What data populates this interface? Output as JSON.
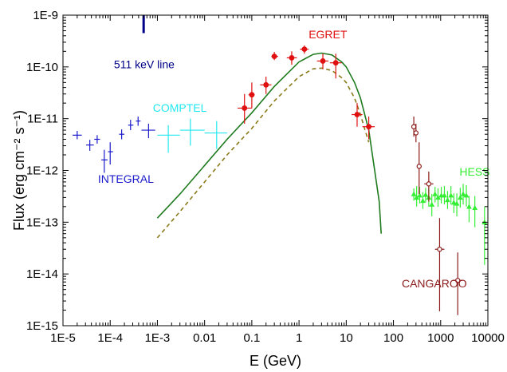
{
  "chart_data": {
    "type": "scatter",
    "xlabel": "E (GeV)",
    "ylabel": "Flux (erg cm⁻² s⁻¹)",
    "x_scale": "log",
    "y_scale": "log",
    "xlim": [
      1e-05,
      10000
    ],
    "ylim": [
      1e-15,
      1e-09
    ],
    "grid": false,
    "x_ticks": [
      {
        "value": 1e-05,
        "label": "1E-5"
      },
      {
        "value": 0.0001,
        "label": "1E-4"
      },
      {
        "value": 0.001,
        "label": "1E-3"
      },
      {
        "value": 0.01,
        "label": "0.01"
      },
      {
        "value": 0.1,
        "label": "0.1"
      },
      {
        "value": 1,
        "label": "1"
      },
      {
        "value": 10,
        "label": "10"
      },
      {
        "value": 100,
        "label": "100"
      },
      {
        "value": 1000,
        "label": "1000"
      },
      {
        "value": 10000,
        "label": "10000"
      }
    ],
    "y_ticks": [
      {
        "value": 1e-15,
        "label": "1E-15"
      },
      {
        "value": 1e-14,
        "label": "1E-14"
      },
      {
        "value": 1e-13,
        "label": "1E-13"
      },
      {
        "value": 1e-12,
        "label": "1E-12"
      },
      {
        "value": 1e-11,
        "label": "1E-11"
      },
      {
        "value": 1e-10,
        "label": "1E-10"
      },
      {
        "value": 1e-09,
        "label": "1E-9"
      }
    ],
    "series": [
      {
        "name": "INTEGRAL",
        "color": "#1a1acc",
        "marker": "cross",
        "points": [
          {
            "x": 2e-05,
            "y": 4.8e-12,
            "xlo": 1.6e-05,
            "xhi": 2.5e-05,
            "ylo": 4e-12,
            "yhi": 5.8e-12
          },
          {
            "x": 3.7e-05,
            "y": 3.1e-12,
            "xlo": 3.1e-05,
            "xhi": 4.5e-05,
            "ylo": 2.4e-12,
            "yhi": 3.9e-12
          },
          {
            "x": 5.3e-05,
            "y": 4e-12,
            "xlo": 4.6e-05,
            "xhi": 6.1e-05,
            "ylo": 3.3e-12,
            "yhi": 4.8e-12
          },
          {
            "x": 7.5e-05,
            "y": 1.6e-12,
            "xlo": 6.5e-05,
            "xhi": 8.8e-05,
            "ylo": 9e-13,
            "yhi": 2.5e-12
          },
          {
            "x": 0.0001,
            "y": 2.3e-12,
            "xlo": 9e-05,
            "xhi": 0.000115,
            "ylo": 1.3e-12,
            "yhi": 3.5e-12
          },
          {
            "x": 0.000175,
            "y": 5e-12,
            "xlo": 0.000155,
            "xhi": 0.0002,
            "ylo": 4e-12,
            "yhi": 6.2e-12
          },
          {
            "x": 0.00027,
            "y": 7.5e-12,
            "xlo": 0.00024,
            "xhi": 0.00031,
            "ylo": 6e-12,
            "yhi": 9.5e-12
          },
          {
            "x": 0.00039,
            "y": 9e-12,
            "xlo": 0.00035,
            "xhi": 0.00044,
            "ylo": 7.3e-12,
            "yhi": 1.1e-11
          },
          {
            "x": 0.00065,
            "y": 6e-12,
            "xlo": 0.00046,
            "xhi": 0.0009,
            "ylo": 4.2e-12,
            "yhi": 8e-12
          }
        ]
      },
      {
        "name": "COMPTEL",
        "color": "#22e8f0",
        "marker": "cross",
        "points": [
          {
            "x": 0.0017,
            "y": 4.8e-12,
            "xlo": 0.001,
            "xhi": 0.003,
            "ylo": 2.2e-12,
            "yhi": 7.5e-12
          },
          {
            "x": 0.005,
            "y": 6e-12,
            "xlo": 0.003,
            "xhi": 0.01,
            "ylo": 3e-12,
            "yhi": 1e-11
          },
          {
            "x": 0.018,
            "y": 5.3e-12,
            "xlo": 0.01,
            "xhi": 0.03,
            "ylo": 2.6e-12,
            "yhi": 9e-12
          }
        ]
      },
      {
        "name": "EGRET",
        "color": "#e01010",
        "marker": "filled-circle",
        "points": [
          {
            "x": 0.07,
            "y": 1.6e-11,
            "xlo": 0.05,
            "xhi": 0.1,
            "ylo": 8e-12,
            "yhi": 3e-11
          },
          {
            "x": 0.1,
            "y": 2.9e-11,
            "xlo": 0.085,
            "xhi": 0.115,
            "ylo": 1.6e-11,
            "yhi": 5e-11
          },
          {
            "x": 0.2,
            "y": 4.5e-11,
            "xlo": 0.15,
            "xhi": 0.26,
            "ylo": 3e-11,
            "yhi": 6.5e-11
          },
          {
            "x": 0.3,
            "y": 1.6e-10,
            "xlo": 0.26,
            "xhi": 0.36,
            "ylo": 1.35e-10,
            "yhi": 1.95e-10
          },
          {
            "x": 0.7,
            "y": 1.5e-10,
            "xlo": 0.55,
            "xhi": 0.9,
            "ylo": 1.1e-10,
            "yhi": 2e-10
          },
          {
            "x": 1.3,
            "y": 2.2e-10,
            "xlo": 1.05,
            "xhi": 1.6,
            "ylo": 1.8e-10,
            "yhi": 2.6e-10
          },
          {
            "x": 3.2,
            "y": 1.3e-10,
            "xlo": 2.4,
            "xhi": 4.2,
            "ylo": 9e-11,
            "yhi": 1.8e-10
          },
          {
            "x": 6.0,
            "y": 1.2e-10,
            "xlo": 4.5,
            "xhi": 8.0,
            "ylo": 6e-11,
            "yhi": 1.8e-10
          },
          {
            "x": 17,
            "y": 1.2e-11,
            "xlo": 13,
            "xhi": 22,
            "ylo": 7e-12,
            "yhi": 2e-11
          },
          {
            "x": 30,
            "y": 7e-12,
            "xlo": 22,
            "xhi": 40,
            "ylo": 4e-12,
            "yhi": 1.1e-11
          }
        ]
      },
      {
        "name": "HESS",
        "color": "#33ee33",
        "marker": "filled-triangle",
        "points": [
          {
            "x": 270,
            "y": 3.5e-13,
            "ylo": 2.6e-13,
            "yhi": 4.5e-13
          },
          {
            "x": 310,
            "y": 3e-13,
            "ylo": 2e-13,
            "yhi": 5e-13
          },
          {
            "x": 360,
            "y": 3.3e-13,
            "ylo": 2.3e-13,
            "yhi": 4.8e-13
          },
          {
            "x": 420,
            "y": 2.6e-13,
            "ylo": 1.8e-13,
            "yhi": 3.8e-13
          },
          {
            "x": 480,
            "y": 3.4e-13,
            "ylo": 2.4e-13,
            "yhi": 4.6e-13
          },
          {
            "x": 560,
            "y": 3e-13,
            "ylo": 2e-13,
            "yhi": 4.5e-13
          },
          {
            "x": 650,
            "y": 2.2e-13,
            "ylo": 1.3e-13,
            "yhi": 3.5e-13
          },
          {
            "x": 760,
            "y": 3.5e-13,
            "ylo": 2.4e-13,
            "yhi": 4.8e-13
          },
          {
            "x": 880,
            "y": 3e-13,
            "ylo": 2e-13,
            "yhi": 4.5e-13
          },
          {
            "x": 1030,
            "y": 3.3e-13,
            "ylo": 2.3e-13,
            "yhi": 4.8e-13
          },
          {
            "x": 1200,
            "y": 3.3e-13,
            "ylo": 2.2e-13,
            "yhi": 5e-13
          },
          {
            "x": 1400,
            "y": 2.7e-13,
            "ylo": 1.8e-13,
            "yhi": 4e-13
          },
          {
            "x": 1650,
            "y": 3.3e-13,
            "ylo": 2.2e-13,
            "yhi": 5e-13
          },
          {
            "x": 1900,
            "y": 2.4e-13,
            "ylo": 1.5e-13,
            "yhi": 3.6e-13
          },
          {
            "x": 2200,
            "y": 2.3e-13,
            "ylo": 1.3e-13,
            "yhi": 3.6e-13
          },
          {
            "x": 2600,
            "y": 3e-13,
            "ylo": 1.9e-13,
            "yhi": 4.6e-13
          },
          {
            "x": 3000,
            "y": 3.5e-13,
            "ylo": 2.2e-13,
            "yhi": 5.5e-13
          },
          {
            "x": 3500,
            "y": 3.3e-13,
            "ylo": 2e-13,
            "yhi": 5.2e-13
          },
          {
            "x": 4000,
            "y": 2e-13,
            "ylo": 1e-13,
            "yhi": 3.2e-13
          },
          {
            "x": 5300,
            "y": 1.9e-13,
            "ylo": 8e-14,
            "yhi": 3.2e-13
          },
          {
            "x": 8500,
            "y": 1e-13,
            "ylo": 1.5e-14,
            "yhi": 2e-13
          }
        ]
      },
      {
        "name": "CANGAROO",
        "color": "#8b1a1a",
        "marker": "open-circle",
        "points": [
          {
            "x": 270,
            "y": 7e-12,
            "ylo": 4.5e-12,
            "yhi": 1.1e-11
          },
          {
            "x": 300,
            "y": 5.3e-12,
            "ylo": 3.5e-12,
            "yhi": 8e-12
          },
          {
            "x": 350,
            "y": 1.2e-12,
            "ylo": 3.5e-13,
            "yhi": 3.5e-12
          },
          {
            "x": 560,
            "y": 5.5e-13,
            "xlo": 450,
            "xhi": 700,
            "ylo": 2.5e-13,
            "yhi": 9.5e-13
          },
          {
            "x": 950,
            "y": 3e-14,
            "xlo": 760,
            "xhi": 1200,
            "ylo": 1.9e-15,
            "yhi": 1.2e-13
          },
          {
            "x": 2300,
            "y": 7.5e-15,
            "xlo": 1800,
            "xhi": 2900,
            "ylo": 1.6e-15,
            "yhi": 2.6e-14
          }
        ]
      },
      {
        "name": "511 keV line",
        "color": "#000088",
        "marker": "vertical-bar",
        "points": [
          {
            "x": 0.000511,
            "y": 7e-10,
            "ylo": 4.5e-10,
            "yhi": 1e-09
          }
        ]
      }
    ],
    "curves": [
      {
        "color": "#1e7a1e",
        "style": "solid",
        "points": [
          [
            0.001,
            1.2e-13
          ],
          [
            0.003,
            3.5e-13
          ],
          [
            0.01,
            1.25e-12
          ],
          [
            0.03,
            4e-12
          ],
          [
            0.1,
            1.3e-11
          ],
          [
            0.3,
            4.2e-11
          ],
          [
            1,
            1.25e-10
          ],
          [
            2,
            1.75e-10
          ],
          [
            3,
            1.85e-10
          ],
          [
            5,
            1.7e-10
          ],
          [
            8,
            1.25e-10
          ],
          [
            10,
            1e-10
          ],
          [
            15,
            5e-11
          ],
          [
            20,
            2.5e-11
          ],
          [
            30,
            6e-12
          ],
          [
            40,
            1e-12
          ],
          [
            50,
            2.5e-13
          ],
          [
            55,
            6e-14
          ]
        ]
      },
      {
        "color": "#8a7a1a",
        "style": "dashed",
        "points": [
          [
            0.001,
            5e-14
          ],
          [
            0.003,
            1.6e-13
          ],
          [
            0.01,
            6e-13
          ],
          [
            0.03,
            2e-12
          ],
          [
            0.1,
            6.5e-12
          ],
          [
            0.3,
            2.2e-11
          ],
          [
            1,
            6.5e-11
          ],
          [
            2,
            9.2e-11
          ],
          [
            3,
            9.5e-11
          ],
          [
            5,
            8.5e-11
          ],
          [
            8,
            6.2e-11
          ],
          [
            10,
            5e-11
          ],
          [
            15,
            2.5e-11
          ],
          [
            20,
            1.2e-11
          ],
          [
            25,
            6e-12
          ],
          [
            30,
            3.5e-12
          ]
        ]
      }
    ],
    "annotations": [
      {
        "text": "511 keV line",
        "color": "#000088",
        "x": 0.00012,
        "y": 9.5e-11
      },
      {
        "text": "EGRET",
        "color": "#e01010",
        "x": 1.6,
        "y": 3.6e-10
      },
      {
        "text": "COMPTEL",
        "color": "#22e8f0",
        "x": 0.0008,
        "y": 1.35e-11
      },
      {
        "text": "INTEGRAL",
        "color": "#1a1acc",
        "x": 5.5e-05,
        "y": 5.8e-13
      },
      {
        "text": "HESS",
        "color": "#33ee33",
        "x": 2500,
        "y": 8e-13
      },
      {
        "text": "CANGAROO",
        "color": "#8b1a1a",
        "x": 150,
        "y": 5.5e-15
      }
    ]
  }
}
